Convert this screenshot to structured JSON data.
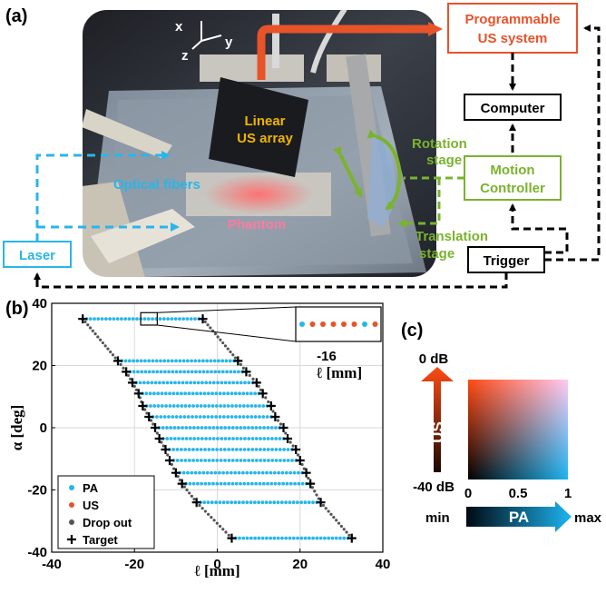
{
  "panels": {
    "a": "(a)",
    "b": "(b)",
    "c": "(c)"
  },
  "setup": {
    "axes": {
      "x": "x",
      "y": "y",
      "z": "z"
    },
    "array_label_1": "Linear",
    "array_label_2": "US array",
    "fibers_label": "Optical fibers",
    "phantom_label": "Phantom",
    "rotation_1": "Rotation",
    "rotation_2": "stage",
    "translation_1": "Translation",
    "translation_2": "stage",
    "programmable_1": "Programmable",
    "programmable_2": "US system",
    "computer": "Computer",
    "motion_1": "Motion",
    "motion_2": "Controller",
    "laser": "Laser",
    "trigger": "Trigger",
    "colors": {
      "us": "#e8532a",
      "laser": "#29b6e8",
      "motion": "#7ab32e",
      "yellow": "#f0b400",
      "pink": "#ff7aa0"
    }
  },
  "colormap": {
    "us_label": "US",
    "pa_label": "PA",
    "top_db": "0 dB",
    "bottom_db": "-40 dB",
    "ticks": [
      "0",
      "0.5",
      "1"
    ],
    "min_label": "min",
    "max_label": "max"
  },
  "chart_data": {
    "type": "scatter",
    "xlabel": "ℓ [mm]",
    "ylabel": "α [deg]",
    "xlim": [
      -40,
      40
    ],
    "ylim": [
      -40,
      40
    ],
    "xticks": [
      "-40",
      "-20",
      "0",
      "20",
      "40"
    ],
    "yticks": [
      "40",
      "20",
      "0",
      "-20",
      "-40"
    ],
    "grid": true,
    "legend": {
      "position": "bottom-left",
      "entries": [
        "PA",
        "US",
        "Drop out",
        "Target"
      ]
    },
    "series_colors": {
      "PA": "#29b6e8",
      "US": "#e8532a",
      "Drop out": "#555555",
      "Target": "#000000"
    },
    "rows": [
      {
        "alpha": 35,
        "l_start": -32.5,
        "l_end": -3.5
      },
      {
        "alpha": 21.5,
        "l_start": -24,
        "l_end": 5
      },
      {
        "alpha": 18,
        "l_start": -22,
        "l_end": 7
      },
      {
        "alpha": 14.5,
        "l_start": -20.5,
        "l_end": 9.5
      },
      {
        "alpha": 11,
        "l_start": -19,
        "l_end": 11
      },
      {
        "alpha": 7,
        "l_start": -18,
        "l_end": 13
      },
      {
        "alpha": 3.5,
        "l_start": -16.5,
        "l_end": 14
      },
      {
        "alpha": 0,
        "l_start": -15,
        "l_end": 16
      },
      {
        "alpha": -3.5,
        "l_start": -14,
        "l_end": 17
      },
      {
        "alpha": -7,
        "l_start": -12.5,
        "l_end": 19
      },
      {
        "alpha": -10.5,
        "l_start": -11.5,
        "l_end": 20
      },
      {
        "alpha": -14.5,
        "l_start": -10,
        "l_end": 21.5
      },
      {
        "alpha": -18,
        "l_start": -8.5,
        "l_end": 22.5
      },
      {
        "alpha": -24,
        "l_start": -5,
        "l_end": 25
      },
      {
        "alpha": -35.5,
        "l_start": 3.5,
        "l_end": 32.5
      }
    ],
    "inset": {
      "tick": "-16",
      "xlabel": "ℓ [mm]",
      "points": [
        "PA",
        "US",
        "US",
        "US",
        "US",
        "US",
        "PA",
        "US"
      ]
    }
  }
}
